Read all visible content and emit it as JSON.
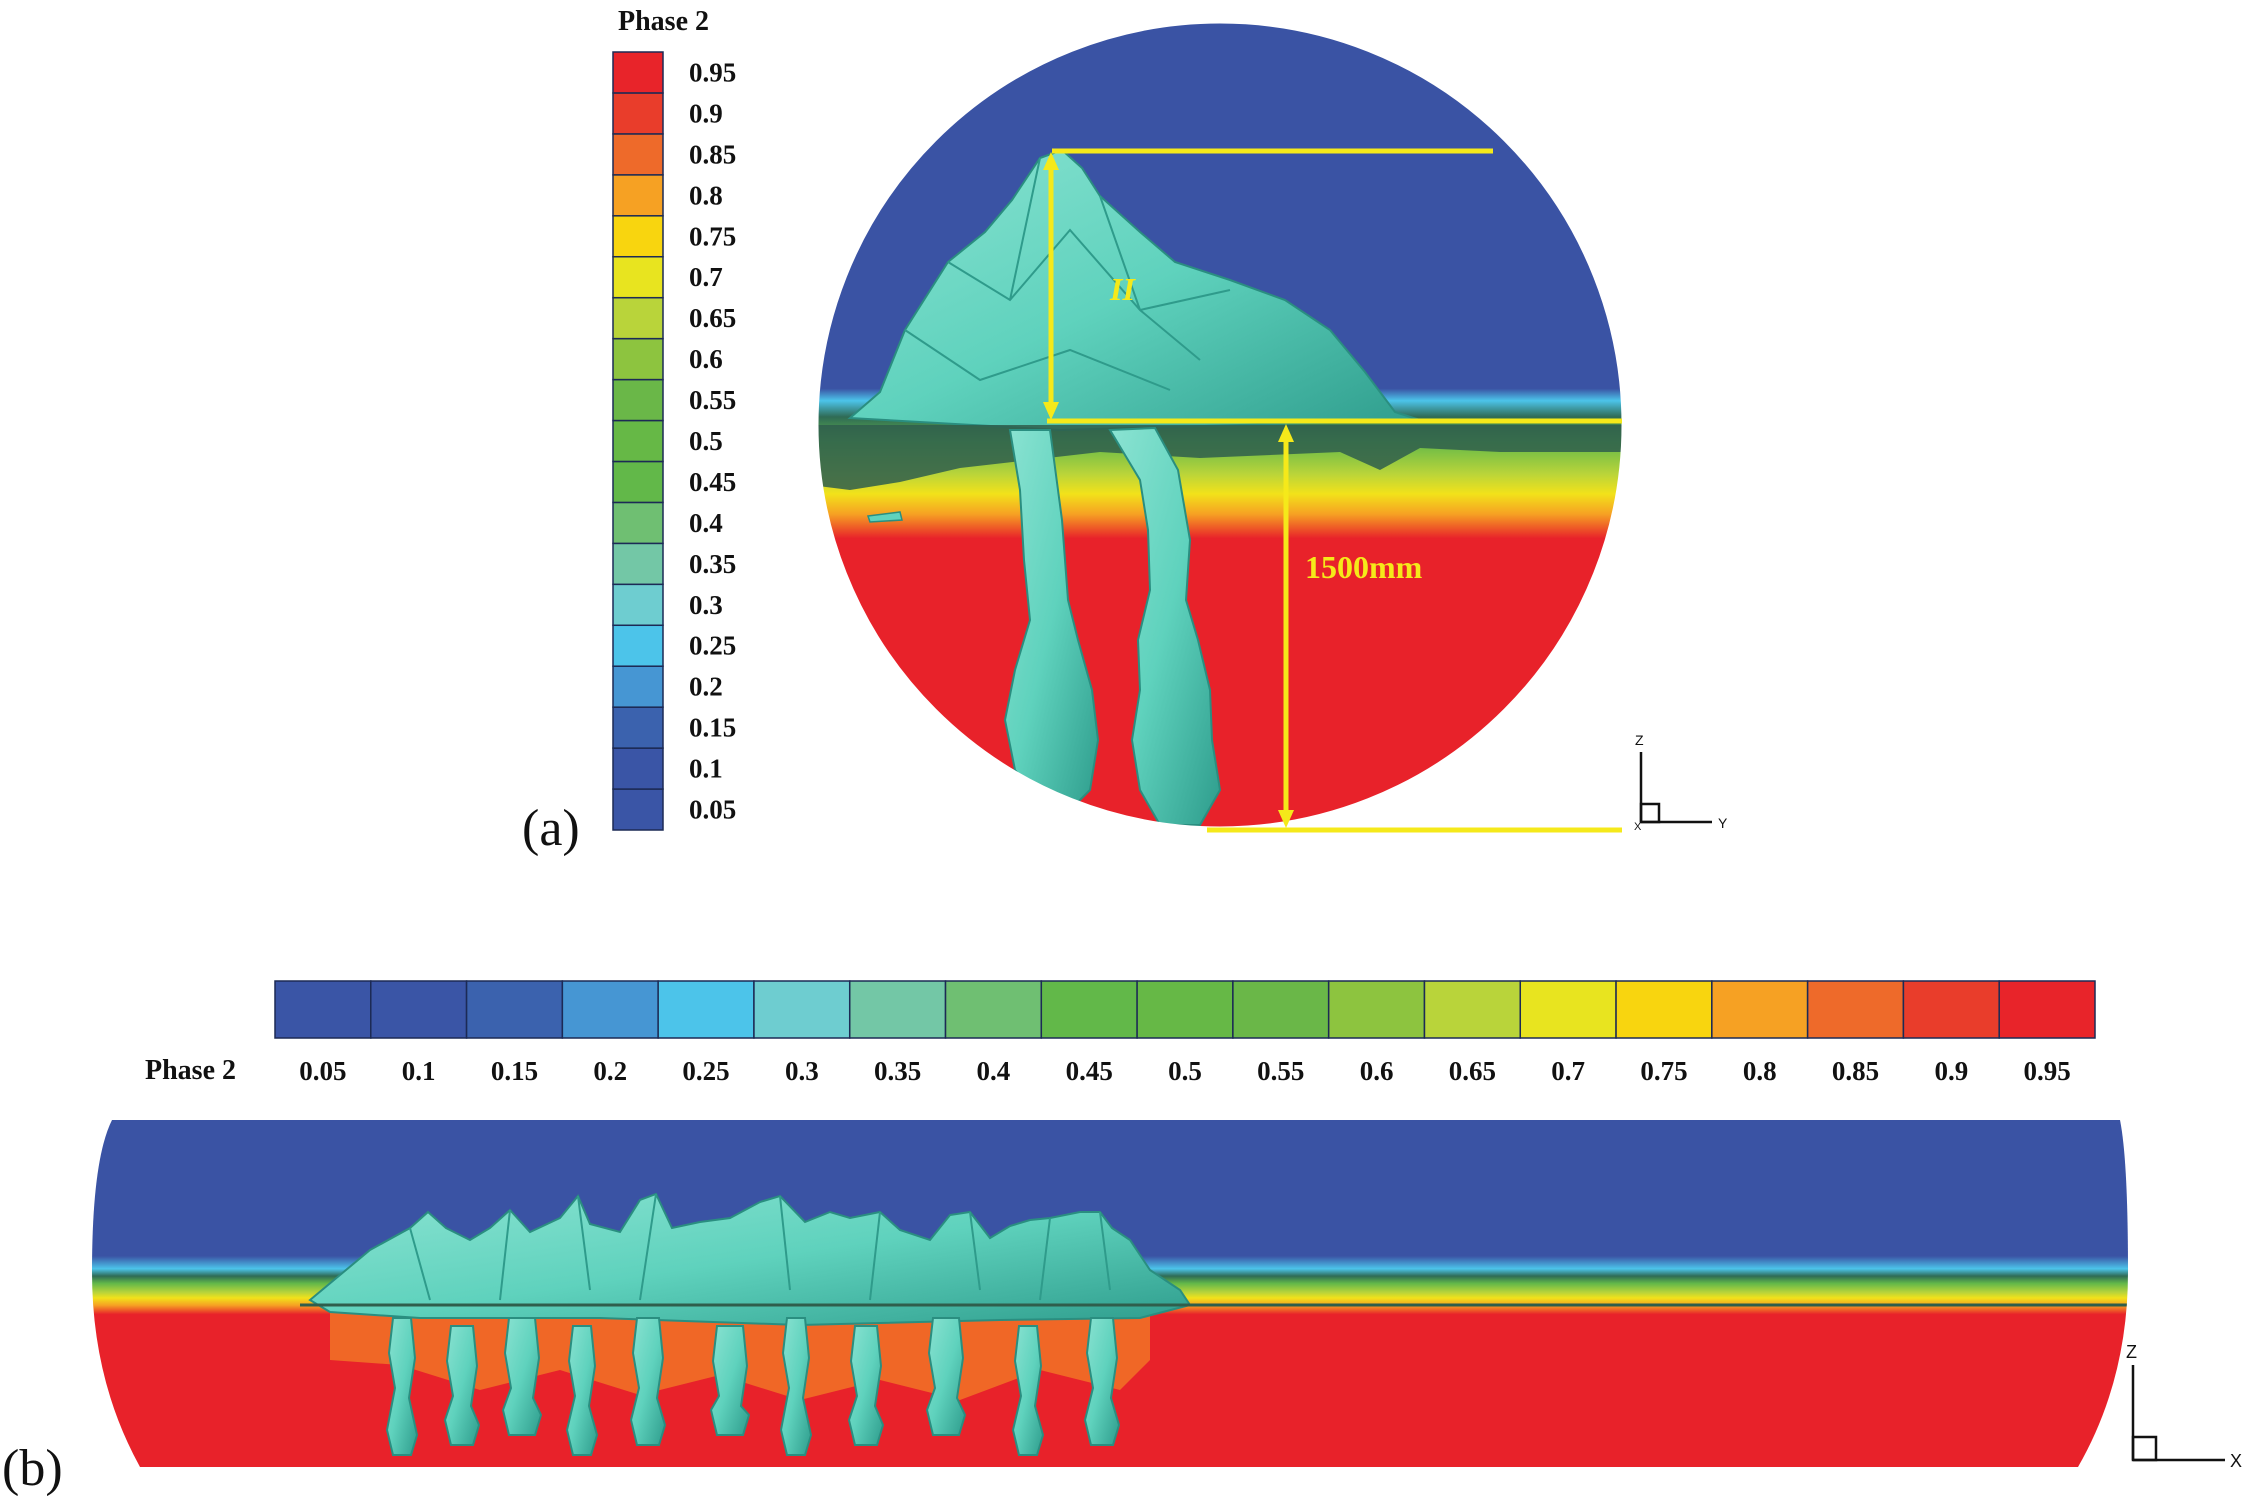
{
  "legend": {
    "title": "Phase 2",
    "levels": [
      "0.05",
      "0.1",
      "0.15",
      "0.2",
      "0.25",
      "0.3",
      "0.35",
      "0.4",
      "0.45",
      "0.5",
      "0.55",
      "0.6",
      "0.65",
      "0.7",
      "0.75",
      "0.8",
      "0.85",
      "0.9",
      "0.95"
    ],
    "colors": [
      "#3a55a6",
      "#3a55a6",
      "#3b62ae",
      "#4696d3",
      "#4cc4ea",
      "#6ecdd0",
      "#73c7a6",
      "#6fbf72",
      "#62b849",
      "#66b846",
      "#6ab748",
      "#8dc43f",
      "#b9d43a",
      "#e8e41f",
      "#f8d50f",
      "#f6a123",
      "#ee6a2a",
      "#e93d2b",
      "#e8242a"
    ]
  },
  "panel_a": {
    "label": "(a)",
    "dimension_label": "1500mm",
    "region_label": "II",
    "axis_z": "Z",
    "axis_y": "Y",
    "axis_x": "X"
  },
  "panel_b": {
    "label": "(b)",
    "axis_z": "Z",
    "axis_x": "X"
  },
  "colors": {
    "gas": "#3a53a4",
    "liquid": "#e8222a",
    "interface_green": "#62b849",
    "interface_yellow": "#f2e21a",
    "bubble": "#5fd2bd",
    "bubble_dark": "#2e9c8c",
    "annotation": "#f5e91a"
  }
}
